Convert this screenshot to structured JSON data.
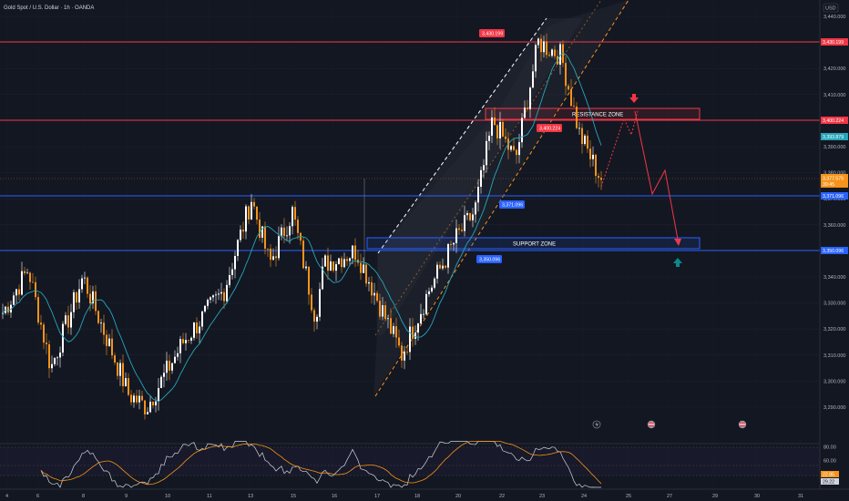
{
  "header": {
    "symbol_title": "Gold Spot / U.S. Dollar · 1h · OANDA",
    "currency": "USD"
  },
  "colors": {
    "background": "#131722",
    "grid": "#1c2030",
    "candle_up": "#ffffff",
    "candle_down": "#f7931a",
    "ma_line": "#26a6b8",
    "resistance_line": "#f23645",
    "support_line": "#2962ff",
    "arrow_down": "#f23645",
    "arrow_up": "#0b8a8a",
    "rsi_line": "#d1d4dc",
    "rsi_ma": "#f7931a",
    "current_price": "#f7931a"
  },
  "price_axis": {
    "labels": [
      "3,440.000",
      "3,430.000",
      "3,420.000",
      "3,410.000",
      "3,400.000",
      "3,390.000",
      "3,380.000",
      "3,370.000",
      "3,360.000",
      "3,350.000",
      "3,340.000",
      "3,330.000",
      "3,320.000",
      "3,310.000",
      "3,300.000",
      "3,290.000"
    ],
    "range": [
      3285,
      3443
    ]
  },
  "time_axis": {
    "labels": [
      "4",
      "6",
      "8",
      "9",
      "10",
      "11",
      "13",
      "15",
      "16",
      "17",
      "18",
      "20",
      "22",
      "23",
      "24",
      "25",
      "27",
      "29",
      "30",
      "31"
    ]
  },
  "levels": {
    "top_resistance": {
      "value": 3430.199,
      "label": "3,430.199"
    },
    "resistance": {
      "value": 3400.224,
      "label": "3,400.224"
    },
    "support_upper": {
      "value": 3371.096,
      "label": "3,371.096"
    },
    "support_lower": {
      "value": 3350.096,
      "label": "3,350.096"
    }
  },
  "tags": {
    "peak_tag": "3,430.199",
    "resistance_tag": "3,400.224",
    "support_upper_tag": "3,371.096",
    "support_lower_tag": "3,350.096",
    "ma_value": "3,393.879",
    "current_price": "3,377.575",
    "countdown": "39:45"
  },
  "zones": {
    "resistance_zone": "RESISTANCE ZONE",
    "support_zone": "SUPPORT ZONE"
  },
  "rsi": {
    "axis_labels": [
      "80.00",
      "60.00",
      "40.00"
    ],
    "value_upper": "22.85",
    "value_lower": "29.22"
  },
  "chart_data": {
    "type": "candlestick",
    "title": "Gold Spot / U.S. Dollar · 1h · OANDA",
    "ylim": [
      3285,
      3443
    ],
    "price_path": [
      {
        "x": "4",
        "y": 3325
      },
      {
        "x": "6",
        "y": 3343
      },
      {
        "x": "8",
        "y": 3305
      },
      {
        "x": "8",
        "y": 3340
      },
      {
        "x": "9",
        "y": 3295
      },
      {
        "x": "9",
        "y": 3290
      },
      {
        "x": "10",
        "y": 3315
      },
      {
        "x": "11",
        "y": 3335
      },
      {
        "x": "13",
        "y": 3370
      },
      {
        "x": "13",
        "y": 3345
      },
      {
        "x": "15",
        "y": 3365
      },
      {
        "x": "15",
        "y": 3325
      },
      {
        "x": "16",
        "y": 3345
      },
      {
        "x": "17",
        "y": 3350
      },
      {
        "x": "18",
        "y": 3310
      },
      {
        "x": "18",
        "y": 3335
      },
      {
        "x": "20",
        "y": 3355
      },
      {
        "x": "20",
        "y": 3365
      },
      {
        "x": "22",
        "y": 3400
      },
      {
        "x": "22",
        "y": 3385
      },
      {
        "x": "23",
        "y": 3430
      },
      {
        "x": "23",
        "y": 3425
      },
      {
        "x": "24",
        "y": 3395
      },
      {
        "x": "24",
        "y": 3378
      }
    ],
    "projection_path": [
      3377.575,
      3400,
      3378,
      3358
    ],
    "rsi": {
      "last": 29.22,
      "ma_last": 22.85,
      "levels": [
        80,
        60,
        40
      ]
    }
  }
}
